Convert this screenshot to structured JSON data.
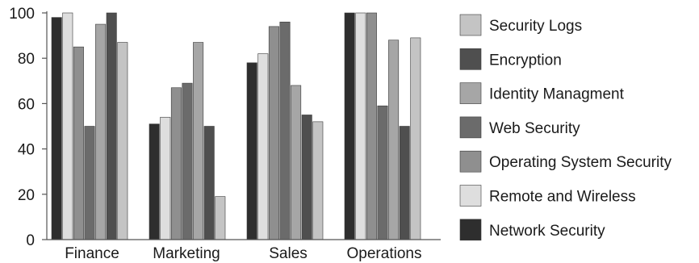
{
  "chart_data": {
    "type": "bar",
    "title": "",
    "xlabel": "",
    "ylabel": "",
    "ylim": [
      0,
      100
    ],
    "yticks": [
      0,
      20,
      40,
      60,
      80,
      100
    ],
    "grid": false,
    "legend_position": "right",
    "categories": [
      "Finance",
      "Marketing",
      "Sales",
      "Operations"
    ],
    "series": [
      {
        "name": "Network Security",
        "color": "#2e2e2e",
        "values": [
          98,
          51,
          78,
          100
        ]
      },
      {
        "name": "Remote and Wireless",
        "color": "#dedede",
        "values": [
          100,
          54,
          82,
          100
        ]
      },
      {
        "name": "Operating System Security",
        "color": "#8f8f8f",
        "values": [
          85,
          67,
          94,
          100
        ]
      },
      {
        "name": "Web Security",
        "color": "#6b6b6b",
        "values": [
          50,
          69,
          96,
          59
        ]
      },
      {
        "name": "Identity Managment",
        "color": "#a6a6a6",
        "values": [
          95,
          87,
          68,
          88
        ]
      },
      {
        "name": "Encryption",
        "color": "#4f4f4f",
        "values": [
          100,
          50,
          55,
          50
        ]
      },
      {
        "name": "Security Logs",
        "color": "#c4c4c4",
        "values": [
          87,
          19,
          52,
          89
        ]
      }
    ],
    "legend_order": [
      "Security Logs",
      "Encryption",
      "Identity Managment",
      "Web Security",
      "Operating System Security",
      "Remote and Wireless",
      "Network Security"
    ]
  }
}
